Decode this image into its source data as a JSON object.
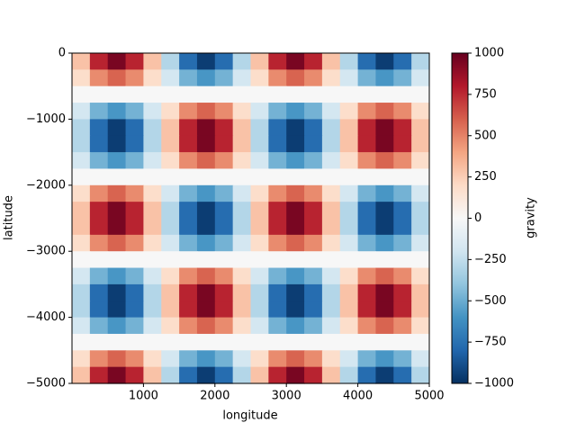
{
  "chart_data": {
    "type": "heatmap",
    "xlabel": "longitude",
    "ylabel": "latitude",
    "colorbar_label": "gravity",
    "xlim": [
      0,
      5000
    ],
    "ylim": [
      -5000,
      0
    ],
    "zlim": [
      -1000,
      1000
    ],
    "xticks": [
      1000,
      2000,
      3000,
      4000,
      5000
    ],
    "yticks": [
      0,
      {
        "value": -1000,
        "label": "−1000"
      },
      {
        "value": -2000,
        "label": "−2000"
      },
      {
        "value": -3000,
        "label": "−3000"
      },
      {
        "value": -4000,
        "label": "−4000"
      },
      {
        "value": -5000,
        "label": "−5000"
      }
    ],
    "zticks": [
      {
        "value": -1000,
        "label": "−1000"
      },
      {
        "value": -750,
        "label": "−750"
      },
      {
        "value": -500,
        "label": "−500"
      },
      {
        "value": -250,
        "label": "−250"
      },
      0,
      250,
      500,
      750,
      1000
    ],
    "colors": [
      "#053061",
      "#2166ac",
      "#4393c3",
      "#92c5de",
      "#d1e5f0",
      "#f7f7f7",
      "#fddbc7",
      "#f4a582",
      "#d6604d",
      "#b2182b",
      "#67001f"
    ],
    "x": [
      125,
      375,
      625,
      875,
      1125,
      1375,
      1625,
      1875,
      2125,
      2375,
      2625,
      2875,
      3125,
      3375,
      3625,
      3875,
      4125,
      4375,
      4625,
      4875
    ],
    "y": [
      -125,
      -375,
      -625,
      -875,
      -1125,
      -1375,
      -1625,
      -1875,
      -2125,
      -2375,
      -2625,
      -2875,
      -3125,
      -3375,
      -3625,
      -3875,
      -4125,
      -4375,
      -4625,
      -4875
    ],
    "z": [
      [
        294,
        769,
        951,
        769,
        294,
        -294,
        -769,
        -951,
        -769,
        -294,
        294,
        769,
        951,
        769,
        294,
        -294,
        -769,
        -951,
        -769,
        -294
      ],
      [
        182,
        476,
        588,
        476,
        182,
        -182,
        -476,
        -588,
        -476,
        -182,
        182,
        476,
        588,
        476,
        182,
        -182,
        -476,
        -588,
        -476,
        -182
      ],
      [
        0,
        0,
        0,
        0,
        0,
        0,
        0,
        0,
        0,
        0,
        0,
        0,
        0,
        0,
        0,
        0,
        0,
        0,
        0,
        0
      ],
      [
        -182,
        -476,
        -588,
        -476,
        -182,
        182,
        476,
        588,
        476,
        182,
        -182,
        -476,
        -588,
        -476,
        -182,
        182,
        476,
        588,
        476,
        182
      ],
      [
        -294,
        -769,
        -951,
        -769,
        -294,
        294,
        769,
        951,
        769,
        294,
        -294,
        -769,
        -951,
        -769,
        -294,
        294,
        769,
        951,
        769,
        294
      ],
      [
        -294,
        -769,
        -951,
        -769,
        -294,
        294,
        769,
        951,
        769,
        294,
        -294,
        -769,
        -951,
        -769,
        -294,
        294,
        769,
        951,
        769,
        294
      ],
      [
        -182,
        -476,
        -588,
        -476,
        -182,
        182,
        476,
        588,
        476,
        182,
        -182,
        -476,
        -588,
        -476,
        -182,
        182,
        476,
        588,
        476,
        182
      ],
      [
        0,
        0,
        0,
        0,
        0,
        0,
        0,
        0,
        0,
        0,
        0,
        0,
        0,
        0,
        0,
        0,
        0,
        0,
        0,
        0
      ],
      [
        182,
        476,
        588,
        476,
        182,
        -182,
        -476,
        -588,
        -476,
        -182,
        182,
        476,
        588,
        476,
        182,
        -182,
        -476,
        -588,
        -476,
        -182
      ],
      [
        294,
        769,
        951,
        769,
        294,
        -294,
        -769,
        -951,
        -769,
        -294,
        294,
        769,
        951,
        769,
        294,
        -294,
        -769,
        -951,
        -769,
        -294
      ],
      [
        294,
        769,
        951,
        769,
        294,
        -294,
        -769,
        -951,
        -769,
        -294,
        294,
        769,
        951,
        769,
        294,
        -294,
        -769,
        -951,
        -769,
        -294
      ],
      [
        182,
        476,
        588,
        476,
        182,
        -182,
        -476,
        -588,
        -476,
        -182,
        182,
        476,
        588,
        476,
        182,
        -182,
        -476,
        -588,
        -476,
        -182
      ],
      [
        0,
        0,
        0,
        0,
        0,
        0,
        0,
        0,
        0,
        0,
        0,
        0,
        0,
        0,
        0,
        0,
        0,
        0,
        0,
        0
      ],
      [
        -182,
        -476,
        -588,
        -476,
        -182,
        182,
        476,
        588,
        476,
        182,
        -182,
        -476,
        -588,
        -476,
        -182,
        182,
        476,
        588,
        476,
        182
      ],
      [
        -294,
        -769,
        -951,
        -769,
        -294,
        294,
        769,
        951,
        769,
        294,
        -294,
        -769,
        -951,
        -769,
        -294,
        294,
        769,
        951,
        769,
        294
      ],
      [
        -294,
        -769,
        -951,
        -769,
        -294,
        294,
        769,
        951,
        769,
        294,
        -294,
        -769,
        -951,
        -769,
        -294,
        294,
        769,
        951,
        769,
        294
      ],
      [
        -182,
        -476,
        -588,
        -476,
        -182,
        182,
        476,
        588,
        476,
        182,
        -182,
        -476,
        -588,
        -476,
        -182,
        182,
        476,
        588,
        476,
        182
      ],
      [
        0,
        0,
        0,
        0,
        0,
        0,
        0,
        0,
        0,
        0,
        0,
        0,
        0,
        0,
        0,
        0,
        0,
        0,
        0,
        0
      ],
      [
        182,
        476,
        588,
        476,
        182,
        -182,
        -476,
        -588,
        -476,
        -182,
        182,
        476,
        588,
        476,
        182,
        -182,
        -476,
        -588,
        -476,
        -182
      ],
      [
        294,
        769,
        951,
        769,
        294,
        -294,
        -769,
        -951,
        -769,
        -294,
        294,
        769,
        951,
        769,
        294,
        -294,
        -769,
        -951,
        -769,
        -294
      ]
    ]
  }
}
